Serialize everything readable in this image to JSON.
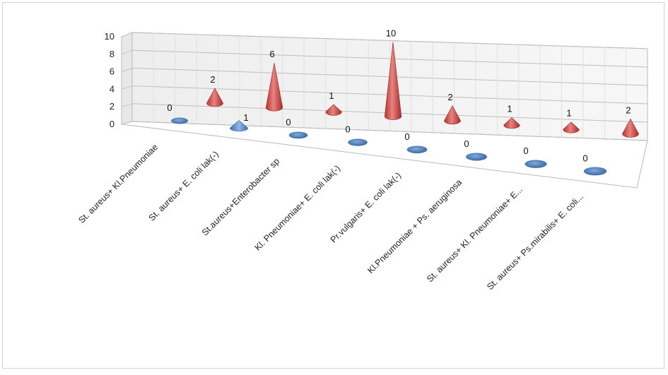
{
  "chart_data": {
    "type": "bar",
    "subtype": "3d-cone",
    "categories": [
      "St. aureus+ Kl.Pneumoniae",
      "St. aureus+ E. coli lak(-)",
      "St.aureus+Enterobacter sp",
      "Kl. Pneumoniae+ E. coli lak(-)",
      "Pr.vulgaris+ E. coli lak(-)",
      "Kl.Pneumoniae + Ps. aeruginosa",
      "St. aureus+ Kl. Pneumoniae+ E...",
      "St. aureus+ Ps.mirabilis+ E. coli..."
    ],
    "series": [
      {
        "values": [
          0,
          1,
          0,
          0,
          0,
          0,
          0,
          0
        ],
        "color": "#4f81bd",
        "value_labels": [
          "0",
          "",
          "0",
          "0",
          "0",
          "0",
          "0",
          "0"
        ]
      },
      {
        "values": [
          2,
          6,
          1,
          10,
          2,
          1,
          1,
          2
        ],
        "color": "#c0504d",
        "value_labels": [
          "2",
          "6",
          "1",
          "10",
          "2",
          "1",
          "1",
          "2"
        ]
      }
    ],
    "extra_labels": [
      "1"
    ],
    "ylim": [
      0,
      10
    ],
    "yticks": [
      "0",
      "2",
      "4",
      "6",
      "8",
      "10"
    ],
    "grid": true,
    "legend": "none"
  }
}
